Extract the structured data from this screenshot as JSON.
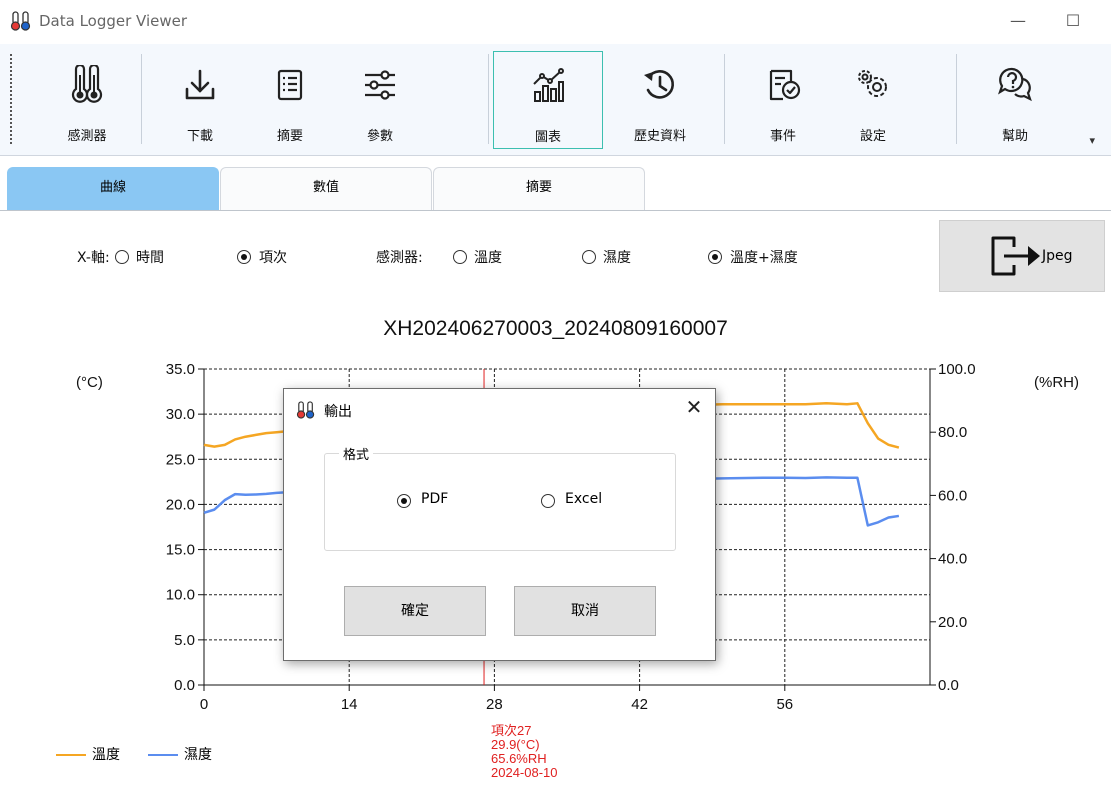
{
  "window": {
    "title": "Data Logger Viewer",
    "minimize": "—",
    "maximize": "☐"
  },
  "ribbon": {
    "items": [
      {
        "label": "感測器",
        "icon": "thermometers-icon"
      },
      {
        "label": "下載",
        "icon": "download-icon"
      },
      {
        "label": "摘要",
        "icon": "summary-list-icon"
      },
      {
        "label": "參數",
        "icon": "sliders-icon"
      },
      {
        "label": "圖表",
        "icon": "chart-icon",
        "active": true
      },
      {
        "label": "歷史資料",
        "icon": "history-icon"
      },
      {
        "label": "事件",
        "icon": "event-check-icon"
      },
      {
        "label": "設定",
        "icon": "gears-icon"
      },
      {
        "label": "幫助",
        "icon": "help-chat-icon"
      }
    ],
    "more": "▾"
  },
  "tabs": [
    {
      "label": "曲線",
      "active": true
    },
    {
      "label": "數值"
    },
    {
      "label": "摘要"
    }
  ],
  "options": {
    "xaxis_label": "X-軸:",
    "xaxis_time": "時間",
    "xaxis_index": "項次",
    "xaxis_selected": "index",
    "sensor_label": "感測器:",
    "sensor_temp": "溫度",
    "sensor_humid": "濕度",
    "sensor_both": "溫度+濕度",
    "sensor_selected": "both",
    "export_jpeg": "Jpeg"
  },
  "chart_data": {
    "type": "line",
    "title": "XH202406270003_20240809160007",
    "ylabel_left": "(°C)",
    "ylabel_right": "(%RH)",
    "xlim": [
      0,
      70
    ],
    "ylim_left": [
      0,
      35
    ],
    "ylim_right": [
      0,
      100
    ],
    "x_ticks": [
      "0",
      "14",
      "28",
      "42",
      "56"
    ],
    "y_left_ticks": [
      "0.0",
      "5.0",
      "10.0",
      "15.0",
      "20.0",
      "25.0",
      "30.0",
      "35.0"
    ],
    "y_right_ticks": [
      "0.0",
      "20.0",
      "40.0",
      "60.0",
      "80.0",
      "100.0"
    ],
    "grid": true,
    "legend": "bottom-left",
    "series": [
      {
        "name": "溫度",
        "color": "#f5a623",
        "axis": "left",
        "x": [
          0,
          1,
          2,
          3,
          4,
          5,
          6,
          7,
          8,
          47,
          50,
          54,
          56,
          58,
          60,
          62,
          63,
          64,
          65,
          66,
          67
        ],
        "y": [
          26.6,
          26.4,
          26.6,
          27.2,
          27.5,
          27.7,
          27.9,
          28.0,
          28.1,
          31.0,
          31.1,
          31.1,
          31.1,
          31.1,
          31.2,
          31.1,
          31.2,
          29.0,
          27.3,
          26.6,
          26.3
        ]
      },
      {
        "name": "濕度",
        "color": "#5b8def",
        "axis": "right",
        "x": [
          0,
          1,
          2,
          3,
          4,
          5,
          6,
          7,
          8,
          47,
          50,
          54,
          56,
          58,
          60,
          62,
          63,
          64,
          65,
          66,
          67
        ],
        "y": [
          54.5,
          55.5,
          58.5,
          60.4,
          60.2,
          60.3,
          60.5,
          60.8,
          61.0,
          65.2,
          65.4,
          65.6,
          65.6,
          65.5,
          65.7,
          65.6,
          65.6,
          50.5,
          51.5,
          53.0,
          53.5
        ]
      }
    ],
    "cursor": {
      "x": 27,
      "line1": "項次27",
      "line2": "29.9(°C)",
      "line3": "65.6%RH",
      "line4": "2024-08-10"
    }
  },
  "legend": {
    "temp": "溫度",
    "humid": "濕度"
  },
  "dialog": {
    "title": "輸出",
    "close": "✕",
    "group_title": "格式",
    "opt_pdf": "PDF",
    "opt_excel": "Excel",
    "selected": "pdf",
    "ok": "確定",
    "cancel": "取消"
  }
}
